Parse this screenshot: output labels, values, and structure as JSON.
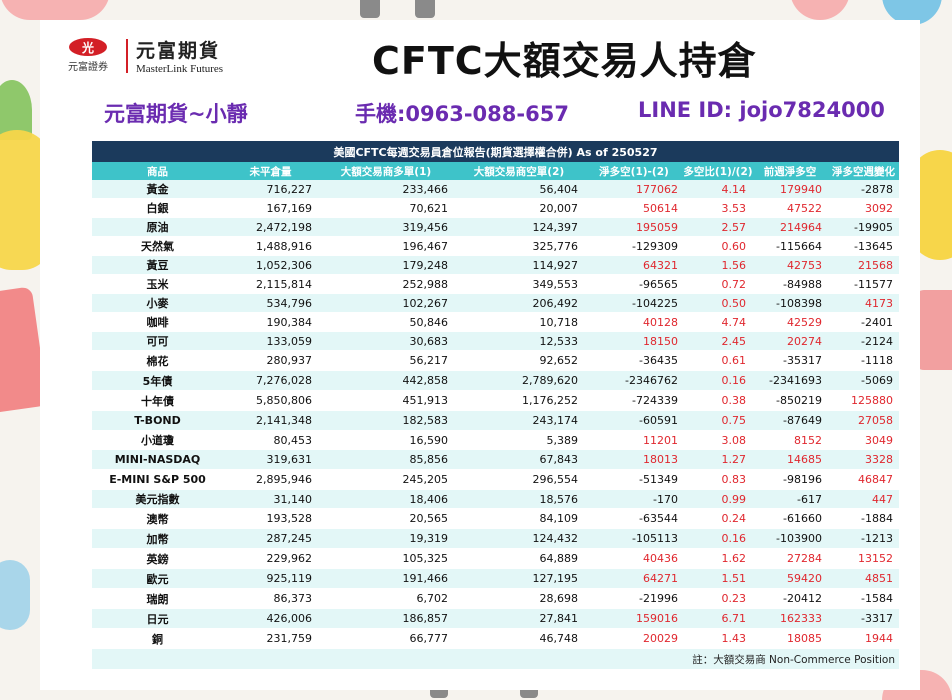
{
  "brand": {
    "logo_mark": "光",
    "logo_sub": "元富證券",
    "name_cn": "元富期貨",
    "name_en": "MasterLink Futures"
  },
  "title": "CFTC大額交易人持倉",
  "contact": {
    "name": "元富期貨~小靜",
    "phone": "手機:0963-088-657",
    "line": "LINE ID: jojo7824000"
  },
  "table": {
    "caption": "美國CFTC每週交易員倉位報告(期貨選擇權合併) As of  250527",
    "headers": [
      "商品",
      "未平倉量",
      "大額交易商多單(1)",
      "大額交易商空單(2)",
      "淨多空(1)-(2)",
      "多空比(1)/(2)",
      "前週淨多空",
      "淨多空週變化"
    ],
    "rows": [
      {
        "cells": [
          "黃金",
          "716,227",
          "233,466",
          "56,404",
          "177062",
          "4.14",
          "179940",
          "-2878"
        ],
        "red": [
          false,
          false,
          false,
          false,
          true,
          true,
          true,
          false
        ]
      },
      {
        "cells": [
          "白銀",
          "167,169",
          "70,621",
          "20,007",
          "50614",
          "3.53",
          "47522",
          "3092"
        ],
        "red": [
          false,
          false,
          false,
          false,
          true,
          true,
          true,
          true
        ]
      },
      {
        "cells": [
          "原油",
          "2,472,198",
          "319,456",
          "124,397",
          "195059",
          "2.57",
          "214964",
          "-19905"
        ],
        "red": [
          false,
          false,
          false,
          false,
          true,
          true,
          true,
          false
        ]
      },
      {
        "cells": [
          "天然氣",
          "1,488,916",
          "196,467",
          "325,776",
          "-129309",
          "0.60",
          "-115664",
          "-13645"
        ],
        "red": [
          false,
          false,
          false,
          false,
          false,
          true,
          false,
          false
        ]
      },
      {
        "cells": [
          "黃豆",
          "1,052,306",
          "179,248",
          "114,927",
          "64321",
          "1.56",
          "42753",
          "21568"
        ],
        "red": [
          false,
          false,
          false,
          false,
          true,
          true,
          true,
          true
        ]
      },
      {
        "cells": [
          "玉米",
          "2,115,814",
          "252,988",
          "349,553",
          "-96565",
          "0.72",
          "-84988",
          "-11577"
        ],
        "red": [
          false,
          false,
          false,
          false,
          false,
          true,
          false,
          false
        ]
      },
      {
        "cells": [
          "小麥",
          "534,796",
          "102,267",
          "206,492",
          "-104225",
          "0.50",
          "-108398",
          "4173"
        ],
        "red": [
          false,
          false,
          false,
          false,
          false,
          true,
          false,
          true
        ]
      },
      {
        "cells": [
          "咖啡",
          "190,384",
          "50,846",
          "10,718",
          "40128",
          "4.74",
          "42529",
          "-2401"
        ],
        "red": [
          false,
          false,
          false,
          false,
          true,
          true,
          true,
          false
        ]
      },
      {
        "cells": [
          "可可",
          "133,059",
          "30,683",
          "12,533",
          "18150",
          "2.45",
          "20274",
          "-2124"
        ],
        "red": [
          false,
          false,
          false,
          false,
          true,
          true,
          true,
          false
        ]
      },
      {
        "cells": [
          "棉花",
          "280,937",
          "56,217",
          "92,652",
          "-36435",
          "0.61",
          "-35317",
          "-1118"
        ],
        "red": [
          false,
          false,
          false,
          false,
          false,
          true,
          false,
          false
        ]
      },
      {
        "cells": [
          "5年債",
          "7,276,028",
          "442,858",
          "2,789,620",
          "-2346762",
          "0.16",
          "-2341693",
          "-5069"
        ],
        "red": [
          false,
          false,
          false,
          false,
          false,
          true,
          false,
          false
        ]
      },
      {
        "cells": [
          "十年債",
          "5,850,806",
          "451,913",
          "1,176,252",
          "-724339",
          "0.38",
          "-850219",
          "125880"
        ],
        "red": [
          false,
          false,
          false,
          false,
          false,
          true,
          false,
          true
        ]
      },
      {
        "cells": [
          "T-BOND",
          "2,141,348",
          "182,583",
          "243,174",
          "-60591",
          "0.75",
          "-87649",
          "27058"
        ],
        "red": [
          false,
          false,
          false,
          false,
          false,
          true,
          false,
          true
        ]
      },
      {
        "cells": [
          "小道瓊",
          "80,453",
          "16,590",
          "5,389",
          "11201",
          "3.08",
          "8152",
          "3049"
        ],
        "red": [
          false,
          false,
          false,
          false,
          true,
          true,
          true,
          true
        ]
      },
      {
        "cells": [
          "MINI-NASDAQ",
          "319,631",
          "85,856",
          "67,843",
          "18013",
          "1.27",
          "14685",
          "3328"
        ],
        "red": [
          false,
          false,
          false,
          false,
          true,
          true,
          true,
          true
        ]
      },
      {
        "cells": [
          "E-MINI S&P 500",
          "2,895,946",
          "245,205",
          "296,554",
          "-51349",
          "0.83",
          "-98196",
          "46847"
        ],
        "red": [
          false,
          false,
          false,
          false,
          false,
          true,
          false,
          true
        ]
      },
      {
        "cells": [
          "美元指數",
          "31,140",
          "18,406",
          "18,576",
          "-170",
          "0.99",
          "-617",
          "447"
        ],
        "red": [
          false,
          false,
          false,
          false,
          false,
          true,
          false,
          true
        ]
      },
      {
        "cells": [
          "澳幣",
          "193,528",
          "20,565",
          "84,109",
          "-63544",
          "0.24",
          "-61660",
          "-1884"
        ],
        "red": [
          false,
          false,
          false,
          false,
          false,
          true,
          false,
          false
        ]
      },
      {
        "cells": [
          "加幣",
          "287,245",
          "19,319",
          "124,432",
          "-105113",
          "0.16",
          "-103900",
          "-1213"
        ],
        "red": [
          false,
          false,
          false,
          false,
          false,
          true,
          false,
          false
        ]
      },
      {
        "cells": [
          "英鎊",
          "229,962",
          "105,325",
          "64,889",
          "40436",
          "1.62",
          "27284",
          "13152"
        ],
        "red": [
          false,
          false,
          false,
          false,
          true,
          true,
          true,
          true
        ]
      },
      {
        "cells": [
          "歐元",
          "925,119",
          "191,466",
          "127,195",
          "64271",
          "1.51",
          "59420",
          "4851"
        ],
        "red": [
          false,
          false,
          false,
          false,
          true,
          true,
          true,
          true
        ]
      },
      {
        "cells": [
          "瑞朗",
          "86,373",
          "6,702",
          "28,698",
          "-21996",
          "0.23",
          "-20412",
          "-1584"
        ],
        "red": [
          false,
          false,
          false,
          false,
          false,
          true,
          false,
          false
        ]
      },
      {
        "cells": [
          "日元",
          "426,006",
          "186,857",
          "27,841",
          "159016",
          "6.71",
          "162333",
          "-3317"
        ],
        "red": [
          false,
          false,
          false,
          false,
          true,
          true,
          true,
          false
        ]
      },
      {
        "cells": [
          "銅",
          "231,759",
          "66,777",
          "46,748",
          "20029",
          "1.43",
          "18085",
          "1944"
        ],
        "red": [
          false,
          false,
          false,
          false,
          true,
          true,
          true,
          true
        ]
      }
    ],
    "note": "註：大額交易商 Non-Commerce Position"
  }
}
